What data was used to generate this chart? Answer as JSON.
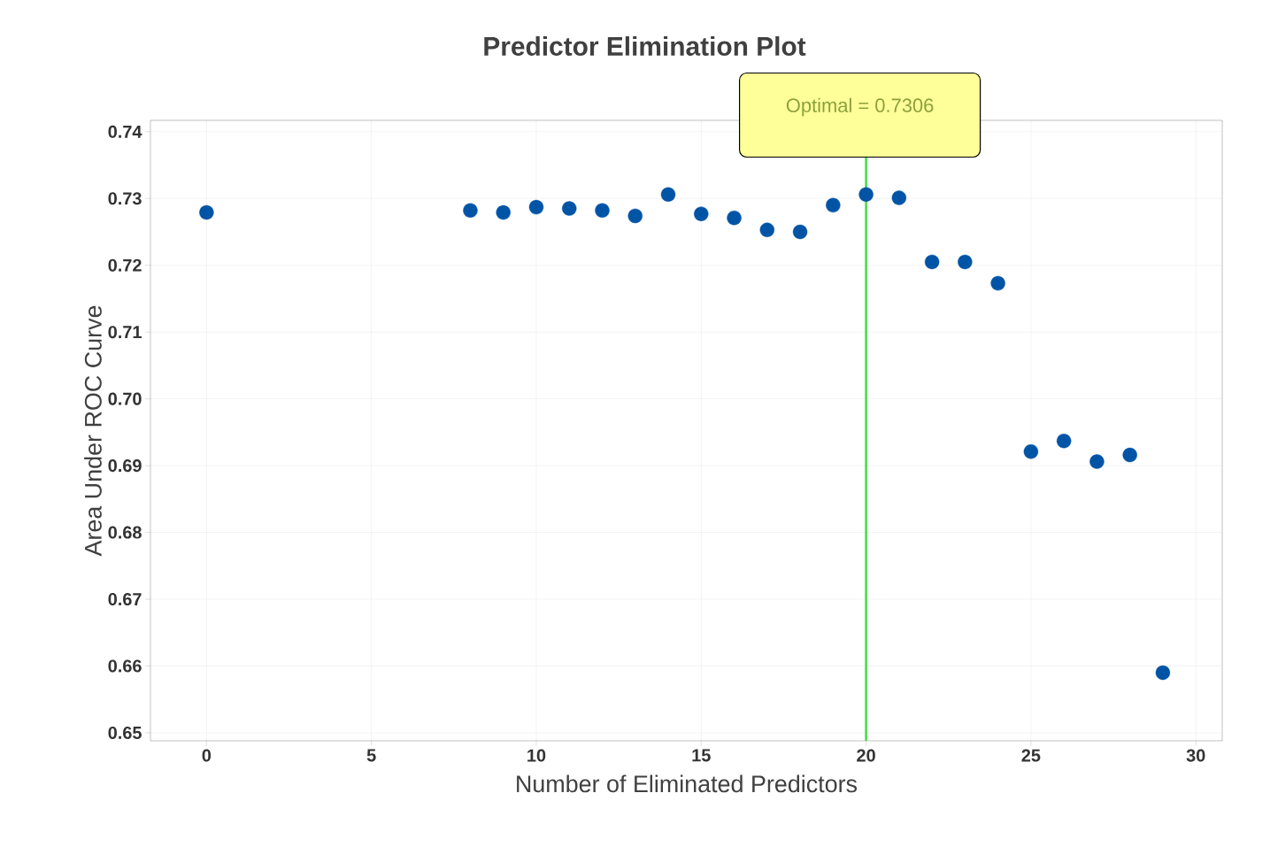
{
  "chart_data": {
    "type": "scatter",
    "title": "Predictor Elimination Plot",
    "xlabel": "Number of Eliminated Predictors",
    "ylabel": "Area Under ROC Curve",
    "x": [
      0,
      8,
      9,
      10,
      11,
      12,
      13,
      14,
      15,
      16,
      17,
      18,
      19,
      20,
      21,
      22,
      23,
      24,
      25,
      26,
      27,
      28,
      29
    ],
    "series": [
      {
        "color": "#0054a6",
        "values": [
          0.7279,
          0.7282,
          0.7279,
          0.7287,
          0.7285,
          0.7282,
          0.7274,
          0.7306,
          0.7277,
          0.7271,
          0.7253,
          0.725,
          0.729,
          0.7306,
          0.7301,
          0.7205,
          0.7205,
          0.7173,
          0.6921,
          0.6937,
          0.6906,
          0.6916,
          0.659
        ]
      }
    ],
    "xlim": [
      -1.7,
      30.8
    ],
    "ylim": [
      0.6488,
      0.7417
    ],
    "xticks": [
      0,
      5,
      10,
      15,
      20,
      25,
      30
    ],
    "yticks": [
      {
        "value": 0.65,
        "label": "0.65"
      },
      {
        "value": 0.66,
        "label": "0.66"
      },
      {
        "value": 0.67,
        "label": "0.67"
      },
      {
        "value": 0.68,
        "label": "0.68"
      },
      {
        "value": 0.69,
        "label": "0.69"
      },
      {
        "value": 0.7,
        "label": "0.70"
      },
      {
        "value": 0.71,
        "label": "0.71"
      },
      {
        "value": 0.72,
        "label": "0.72"
      },
      {
        "value": 0.73,
        "label": "0.73"
      },
      {
        "value": 0.74,
        "label": "0.74"
      }
    ],
    "ref_lines": [
      {
        "axis": "x",
        "value": 20,
        "color": "#44dd44"
      }
    ],
    "annotations": [
      "Optimal = 0.7306"
    ],
    "grid": true
  }
}
